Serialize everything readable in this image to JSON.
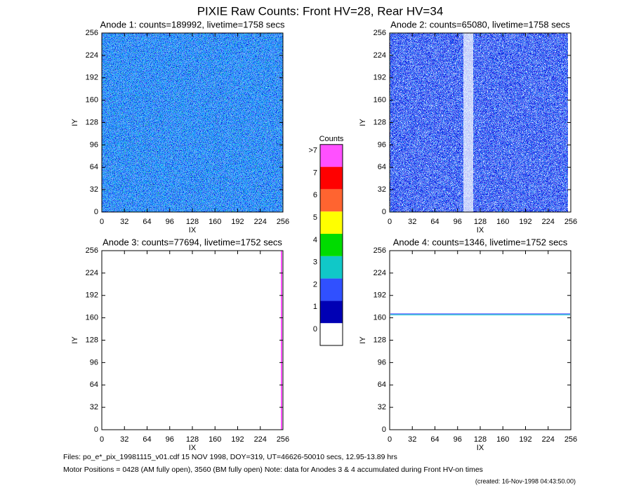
{
  "title": "PIXIE Raw Counts:  Front HV=28, Rear HV=34",
  "chart_data": [
    {
      "type": "heatmap",
      "title": "Anode 1: counts=189992, livetime=1758 secs",
      "xlabel": "IX",
      "ylabel": "IY",
      "xlim": [
        0,
        256
      ],
      "ylim": [
        0,
        256
      ],
      "xticks": [
        0,
        32,
        64,
        96,
        128,
        160,
        192,
        224,
        256
      ],
      "yticks": [
        0,
        32,
        64,
        96,
        128,
        160,
        192,
        224,
        256
      ]
    },
    {
      "type": "heatmap",
      "title": "Anode 2: counts=65080, livetime=1758 secs",
      "xlabel": "IX",
      "ylabel": "IY",
      "xlim": [
        0,
        256
      ],
      "ylim": [
        0,
        256
      ],
      "xticks": [
        0,
        32,
        64,
        96,
        128,
        160,
        192,
        224,
        256
      ],
      "yticks": [
        0,
        32,
        64,
        96,
        128,
        160,
        192,
        224,
        256
      ]
    },
    {
      "type": "heatmap",
      "title": "Anode 3: counts=77694, livetime=1752 secs",
      "xlabel": "IX",
      "ylabel": "IY",
      "xlim": [
        0,
        256
      ],
      "ylim": [
        0,
        256
      ],
      "xticks": [
        0,
        32,
        64,
        96,
        128,
        160,
        192,
        224,
        256
      ],
      "yticks": [
        0,
        32,
        64,
        96,
        128,
        160,
        192,
        224,
        256
      ]
    },
    {
      "type": "heatmap",
      "title": "Anode 4: counts=1346, livetime=1752 secs",
      "xlabel": "IX",
      "ylabel": "IY",
      "xlim": [
        0,
        256
      ],
      "ylim": [
        0,
        256
      ],
      "xticks": [
        0,
        32,
        64,
        96,
        128,
        160,
        192,
        224,
        256
      ],
      "yticks": [
        0,
        32,
        64,
        96,
        128,
        160,
        192,
        224,
        256
      ]
    }
  ],
  "colorbar": {
    "title": "Counts",
    "categories": [
      "0",
      "1",
      "2",
      "3",
      "4",
      "5",
      "6",
      "7",
      ">7"
    ],
    "colors": [
      "#ffffff",
      "#0000b4",
      "#3050ff",
      "#10c8c8",
      "#00dc00",
      "#ffff00",
      "#ff6430",
      "#ff0000",
      "#ff50ff"
    ]
  },
  "footer": {
    "files": "Files: po_e*_pix_19981115_v01.cdf    15 NOV 1998, DOY=319, UT=46626-50010 secs, 12.95-13.89 hrs",
    "motor": "Motor Positions = 0428 (AM fully open), 3560 (BM fully open)    Note: data for Anodes 3 & 4 accumulated during Front HV-on times",
    "created": "(created: 16-Nov-1998 04:43:50.00)"
  }
}
